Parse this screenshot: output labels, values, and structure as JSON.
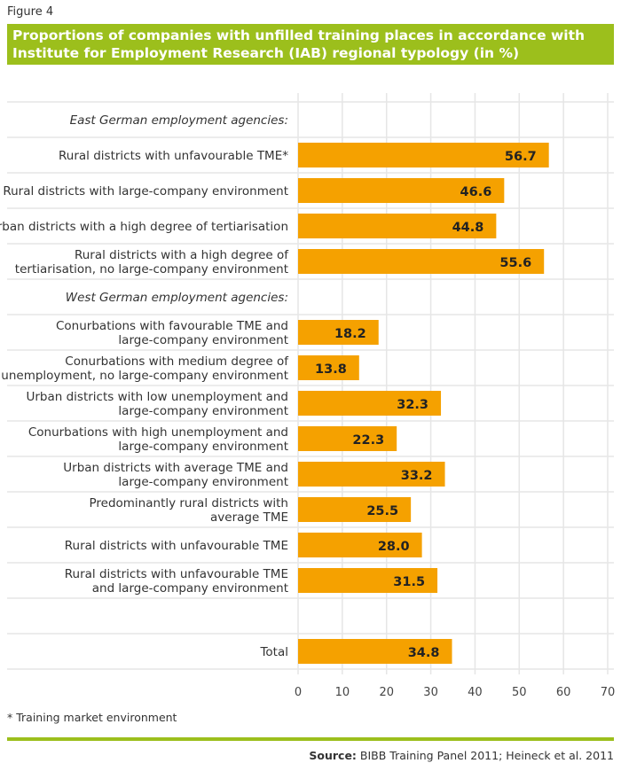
{
  "figure_label": "Figure 4",
  "title_line1": "Proportions of companies with unfilled training places in accordance with",
  "title_line2": "Institute for Employment Research (IAB) regional typology (in %)",
  "footnote": "* Training market environment",
  "source_label": "Source:",
  "source_text": " BIBB Training Panel 2011; Heineck et al. 2011",
  "colors": {
    "bar": "#f5a100",
    "banner": "#9cbf1c",
    "grid": "#e6e6e6"
  },
  "chart_data": {
    "type": "bar",
    "orientation": "horizontal",
    "xlim": [
      0,
      70
    ],
    "xticks": [
      0,
      10,
      20,
      30,
      40,
      50,
      60,
      70
    ],
    "grid": true,
    "rows": [
      {
        "label": [
          "East German employment agencies:"
        ],
        "heading": true
      },
      {
        "label": [
          "Rural districts with unfavourable TME*"
        ],
        "value": 56.7,
        "value_label": "56.7"
      },
      {
        "label": [
          "Rural districts with large-company environment"
        ],
        "value": 46.6,
        "value_label": "46.6"
      },
      {
        "label": [
          "Urban districts with a high degree of tertiarisation"
        ],
        "value": 44.8,
        "value_label": "44.8"
      },
      {
        "label": [
          "Rural districts with a high degree of",
          "tertiarisation, no large-company environment"
        ],
        "value": 55.6,
        "value_label": "55.6"
      },
      {
        "label": [
          "West German employment agencies:"
        ],
        "heading": true
      },
      {
        "label": [
          "Conurbations with favourable TME and",
          "large-company environment"
        ],
        "value": 18.2,
        "value_label": "18.2"
      },
      {
        "label": [
          "Conurbations with medium degree of",
          "unemployment, no large-company environment"
        ],
        "value": 13.8,
        "value_label": "13.8"
      },
      {
        "label": [
          "Urban districts with low unemployment and",
          "large-company environment"
        ],
        "value": 32.3,
        "value_label": "32.3"
      },
      {
        "label": [
          "Conurbations with high unemployment and",
          "large-company environment"
        ],
        "value": 22.3,
        "value_label": "22.3"
      },
      {
        "label": [
          "Urban districts with average TME and",
          "large-company environment"
        ],
        "value": 33.2,
        "value_label": "33.2"
      },
      {
        "label": [
          "Predominantly rural districts with",
          "average TME"
        ],
        "value": 25.5,
        "value_label": "25.5"
      },
      {
        "label": [
          "Rural districts with unfavourable TME"
        ],
        "value": 28.0,
        "value_label": "28.0"
      },
      {
        "label": [
          "Rural districts with unfavourable TME",
          "and large-company environment"
        ],
        "value": 31.5,
        "value_label": "31.5"
      },
      {
        "label": [],
        "blank": true
      },
      {
        "label": [
          "Total"
        ],
        "value": 34.8,
        "value_label": "34.8"
      }
    ]
  }
}
